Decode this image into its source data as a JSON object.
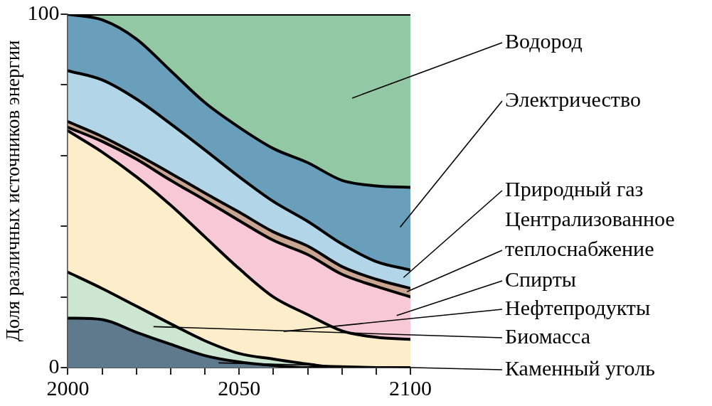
{
  "chart_data": {
    "type": "area",
    "stacked": true,
    "ylabel": "Доля различных источников энергии",
    "x": [
      2000,
      2010,
      2020,
      2030,
      2040,
      2050,
      2060,
      2070,
      2080,
      2090,
      2100
    ],
    "xlim": [
      2000,
      2100
    ],
    "xticks": [
      2000,
      {
        "value": 2010,
        "label": null
      },
      {
        "value": 2020,
        "label": null
      },
      {
        "value": 2030,
        "label": null
      },
      {
        "value": 2040,
        "label": null
      },
      2050,
      {
        "value": 2060,
        "label": null
      },
      {
        "value": 2070,
        "label": null
      },
      {
        "value": 2080,
        "label": null
      },
      {
        "value": 2090,
        "label": null
      },
      2100
    ],
    "ylim": [
      0,
      100
    ],
    "yticks": [
      0,
      {
        "value": 20,
        "label": null
      },
      {
        "value": 40,
        "label": null
      },
      {
        "value": 60,
        "label": null
      },
      {
        "value": 80,
        "label": null
      },
      100
    ],
    "grid": false,
    "legend": "right",
    "series": [
      {
        "name": "Каменный уголь",
        "color": "#5f7a8c",
        "values": [
          14,
          13.6,
          10,
          6.6,
          3.4,
          1.6,
          0.6,
          0,
          0,
          0,
          0
        ]
      },
      {
        "name": "Биомасса",
        "color": "#cde6d2",
        "values": [
          13,
          8.8,
          7.4,
          5.8,
          4.2,
          2.4,
          1.8,
          1,
          0,
          0,
          0
        ]
      },
      {
        "name": "Нефтепродукты",
        "color": "#fdeecb",
        "values": [
          40,
          38.6,
          36.6,
          33.6,
          29.4,
          24,
          17.6,
          14,
          10.4,
          8.6,
          8
        ]
      },
      {
        "name": "Спирты",
        "color": "#f7c9d6",
        "values": [
          1,
          3,
          5,
          7,
          10.4,
          13.6,
          16,
          17,
          16,
          14.4,
          12
        ]
      },
      {
        "name": "Централизованное теплоснабжение",
        "color": "#c9a592",
        "values": [
          1.6,
          1.4,
          1.4,
          2,
          2,
          2.4,
          2.4,
          2.4,
          2.2,
          2,
          2.4
        ]
      },
      {
        "name": "Природный газ",
        "color": "#b3d5e8",
        "values": [
          14.4,
          16,
          15.6,
          14,
          12.2,
          10,
          8.6,
          7,
          6.4,
          5,
          5.2
        ]
      },
      {
        "name": "Электричество",
        "color": "#6a9fbc",
        "values": [
          16,
          17,
          17,
          15,
          13.4,
          14,
          15,
          16.6,
          18,
          21.4,
          23.4
        ]
      },
      {
        "name": "Водород",
        "color": "#93c8a5",
        "values": [
          0,
          1.6,
          7,
          16,
          25,
          32,
          38,
          42,
          47,
          48.6,
          49
        ]
      }
    ]
  }
}
